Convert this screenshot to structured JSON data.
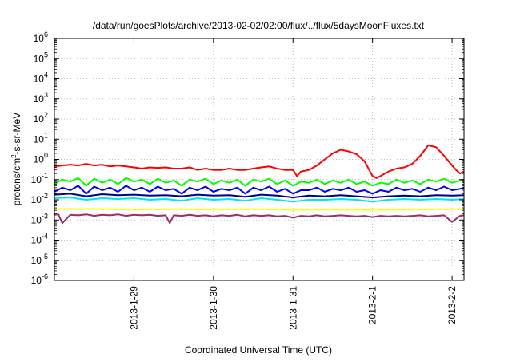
{
  "chart_data": {
    "type": "line",
    "title": "/data/run/goesPlots/archive/2013-02-02/02:00/flux/../flux/5daysMoonFluxes.txt",
    "xlabel": "Coordinated Universal Time (UTC)",
    "ylabel": "protons/cm2-s-sr-MeV",
    "ylabel_parts": {
      "before": "protons/cm",
      "sup": "2",
      "after": "-s-sr-MeV"
    },
    "y_scale": "log",
    "ylim": [
      1e-06,
      1000000
    ],
    "y_ticks": [
      {
        "value": 1e-06,
        "mant": "10",
        "exp": "-6"
      },
      {
        "value": 1e-05,
        "mant": "10",
        "exp": "-5"
      },
      {
        "value": 0.0001,
        "mant": "10",
        "exp": "-4"
      },
      {
        "value": 0.001,
        "mant": "10",
        "exp": "-3"
      },
      {
        "value": 0.01,
        "mant": "10",
        "exp": "-2"
      },
      {
        "value": 0.1,
        "mant": "10",
        "exp": "-1"
      },
      {
        "value": 1,
        "mant": "10",
        "exp": "0"
      },
      {
        "value": 10,
        "mant": "10",
        "exp": "1"
      },
      {
        "value": 100,
        "mant": "10",
        "exp": "2"
      },
      {
        "value": 1000,
        "mant": "10",
        "exp": "3"
      },
      {
        "value": 10000,
        "mant": "10",
        "exp": "4"
      },
      {
        "value": 100000,
        "mant": "10",
        "exp": "5"
      },
      {
        "value": 1000000,
        "mant": "10",
        "exp": "6"
      }
    ],
    "xlim": [
      0,
      5.15
    ],
    "x_ticks": [
      {
        "pos": 1,
        "label": "2013-1-29"
      },
      {
        "pos": 2,
        "label": "2013-1-30"
      },
      {
        "pos": 3,
        "label": "2013-1-31"
      },
      {
        "pos": 4,
        "label": "2013-2-1"
      },
      {
        "pos": 5,
        "label": "2013-2-2"
      }
    ],
    "grid": true,
    "series": [
      {
        "color": "#ff0000",
        "x": [
          0,
          0.1,
          0.2,
          0.3,
          0.4,
          0.5,
          0.6,
          0.7,
          0.8,
          0.9,
          1.0,
          1.1,
          1.2,
          1.3,
          1.4,
          1.5,
          1.6,
          1.7,
          1.8,
          1.9,
          2.0,
          2.1,
          2.2,
          2.3,
          2.4,
          2.5,
          2.6,
          2.7,
          2.8,
          2.9,
          3.0,
          3.05,
          3.1,
          3.2,
          3.3,
          3.4,
          3.5,
          3.6,
          3.7,
          3.8,
          3.9,
          4.0,
          4.05,
          4.1,
          4.2,
          4.3,
          4.4,
          4.5,
          4.6,
          4.7,
          4.8,
          4.9,
          5.0,
          5.05,
          5.1,
          5.15
        ],
        "y": [
          0.45,
          0.5,
          0.55,
          0.5,
          0.6,
          0.5,
          0.55,
          0.45,
          0.5,
          0.45,
          0.4,
          0.35,
          0.4,
          0.38,
          0.4,
          0.35,
          0.35,
          0.4,
          0.3,
          0.35,
          0.3,
          0.3,
          0.35,
          0.3,
          0.3,
          0.35,
          0.4,
          0.45,
          0.35,
          0.3,
          0.3,
          0.15,
          0.25,
          0.3,
          0.5,
          1.0,
          2.0,
          3.0,
          2.5,
          1.8,
          0.8,
          0.15,
          0.12,
          0.15,
          0.25,
          0.35,
          0.4,
          0.6,
          1.5,
          5.0,
          4.0,
          1.5,
          0.5,
          0.3,
          0.2,
          0.25
        ]
      },
      {
        "color": "#00ff00",
        "x": [
          0,
          0.1,
          0.2,
          0.3,
          0.4,
          0.5,
          0.6,
          0.7,
          0.8,
          0.9,
          1.0,
          1.1,
          1.2,
          1.3,
          1.4,
          1.5,
          1.6,
          1.7,
          1.8,
          1.9,
          2.0,
          2.1,
          2.2,
          2.3,
          2.4,
          2.5,
          2.6,
          2.7,
          2.8,
          2.9,
          3.0,
          3.1,
          3.2,
          3.3,
          3.4,
          3.5,
          3.6,
          3.7,
          3.8,
          3.9,
          4.0,
          4.1,
          4.2,
          4.3,
          4.4,
          4.5,
          4.6,
          4.7,
          4.8,
          4.9,
          5.0,
          5.1,
          5.15
        ],
        "y": [
          0.06,
          0.1,
          0.08,
          0.12,
          0.05,
          0.11,
          0.07,
          0.1,
          0.06,
          0.12,
          0.08,
          0.1,
          0.06,
          0.11,
          0.07,
          0.09,
          0.05,
          0.1,
          0.08,
          0.11,
          0.06,
          0.09,
          0.07,
          0.1,
          0.05,
          0.1,
          0.08,
          0.11,
          0.06,
          0.09,
          0.05,
          0.08,
          0.07,
          0.1,
          0.06,
          0.09,
          0.07,
          0.1,
          0.06,
          0.08,
          0.05,
          0.07,
          0.06,
          0.1,
          0.07,
          0.09,
          0.06,
          0.1,
          0.08,
          0.11,
          0.07,
          0.09,
          0.1
        ]
      },
      {
        "color": "#0000ff",
        "x": [
          0,
          0.1,
          0.2,
          0.3,
          0.4,
          0.5,
          0.6,
          0.7,
          0.8,
          0.9,
          1.0,
          1.1,
          1.2,
          1.3,
          1.4,
          1.5,
          1.6,
          1.7,
          1.8,
          1.9,
          2.0,
          2.1,
          2.2,
          2.3,
          2.4,
          2.5,
          2.6,
          2.7,
          2.8,
          2.9,
          3.0,
          3.1,
          3.2,
          3.3,
          3.4,
          3.5,
          3.6,
          3.7,
          3.8,
          3.9,
          4.0,
          4.1,
          4.2,
          4.3,
          4.4,
          4.5,
          4.6,
          4.7,
          4.8,
          4.9,
          5.0,
          5.1,
          5.15
        ],
        "y": [
          0.025,
          0.04,
          0.03,
          0.05,
          0.02,
          0.045,
          0.03,
          0.04,
          0.025,
          0.05,
          0.03,
          0.04,
          0.025,
          0.045,
          0.03,
          0.035,
          0.02,
          0.04,
          0.03,
          0.045,
          0.025,
          0.035,
          0.03,
          0.04,
          0.02,
          0.04,
          0.03,
          0.045,
          0.025,
          0.035,
          0.02,
          0.03,
          0.03,
          0.04,
          0.025,
          0.035,
          0.03,
          0.04,
          0.025,
          0.03,
          0.02,
          0.03,
          0.025,
          0.04,
          0.03,
          0.035,
          0.025,
          0.04,
          0.03,
          0.045,
          0.03,
          0.035,
          0.04
        ]
      },
      {
        "color": "#00008b",
        "x": [
          0,
          0.2,
          0.4,
          0.6,
          0.8,
          1.0,
          1.2,
          1.4,
          1.6,
          1.8,
          2.0,
          2.2,
          2.4,
          2.6,
          2.8,
          3.0,
          3.2,
          3.4,
          3.6,
          3.8,
          4.0,
          4.2,
          4.4,
          4.6,
          4.8,
          5.0,
          5.15
        ],
        "y": [
          0.018,
          0.02,
          0.015,
          0.019,
          0.017,
          0.018,
          0.016,
          0.017,
          0.015,
          0.018,
          0.016,
          0.017,
          0.014,
          0.018,
          0.016,
          0.013,
          0.016,
          0.015,
          0.017,
          0.015,
          0.013,
          0.015,
          0.016,
          0.015,
          0.017,
          0.016,
          0.017
        ]
      },
      {
        "color": "#00e5ee",
        "x": [
          0,
          0.2,
          0.4,
          0.6,
          0.8,
          1.0,
          1.2,
          1.4,
          1.6,
          1.8,
          2.0,
          2.2,
          2.4,
          2.6,
          2.8,
          3.0,
          3.2,
          3.4,
          3.6,
          3.8,
          4.0,
          4.2,
          4.4,
          4.6,
          4.8,
          5.0,
          5.15
        ],
        "y": [
          0.012,
          0.013,
          0.01,
          0.012,
          0.011,
          0.012,
          0.01,
          0.011,
          0.009,
          0.012,
          0.01,
          0.011,
          0.009,
          0.012,
          0.01,
          0.008,
          0.01,
          0.01,
          0.011,
          0.01,
          0.008,
          0.01,
          0.011,
          0.01,
          0.011,
          0.01,
          0.011
        ]
      },
      {
        "color": "#ffff00",
        "x": [
          0,
          0.5,
          1.0,
          1.5,
          2.0,
          2.5,
          3.0,
          3.5,
          4.0,
          4.5,
          5.0,
          5.15
        ],
        "y": [
          0.0035,
          0.0035,
          0.0033,
          0.0034,
          0.0033,
          0.0034,
          0.0032,
          0.0033,
          0.0032,
          0.0033,
          0.0034,
          0.0034
        ]
      },
      {
        "color": "#9b2d6b",
        "x": [
          0,
          0.05,
          0.1,
          0.2,
          0.3,
          0.4,
          0.5,
          0.6,
          0.7,
          0.8,
          0.9,
          1.0,
          1.1,
          1.2,
          1.3,
          1.4,
          1.45,
          1.5,
          1.6,
          1.7,
          1.8,
          1.9,
          2.0,
          2.1,
          2.2,
          2.3,
          2.4,
          2.5,
          2.6,
          2.7,
          2.8,
          2.9,
          3.0,
          3.1,
          3.2,
          3.3,
          3.4,
          3.5,
          3.6,
          3.7,
          3.8,
          3.9,
          4.0,
          4.1,
          4.2,
          4.3,
          4.4,
          4.5,
          4.6,
          4.7,
          4.8,
          4.9,
          5.0,
          5.1,
          5.15
        ],
        "y": [
          0.0018,
          0.0019,
          0.0007,
          0.0018,
          0.0017,
          0.0019,
          0.0016,
          0.0018,
          0.0017,
          0.0019,
          0.0016,
          0.0018,
          0.0017,
          0.0018,
          0.0016,
          0.0017,
          0.0007,
          0.0017,
          0.0016,
          0.0018,
          0.0016,
          0.0017,
          0.0015,
          0.0017,
          0.0016,
          0.0018,
          0.0015,
          0.0017,
          0.0016,
          0.0017,
          0.0015,
          0.0016,
          0.0013,
          0.0016,
          0.0015,
          0.0017,
          0.0015,
          0.0016,
          0.0017,
          0.0016,
          0.0015,
          0.0016,
          0.0014,
          0.0016,
          0.0015,
          0.0016,
          0.0015,
          0.0016,
          0.0017,
          0.0015,
          0.0016,
          0.0017,
          0.0008,
          0.0016,
          0.0017
        ]
      }
    ]
  }
}
